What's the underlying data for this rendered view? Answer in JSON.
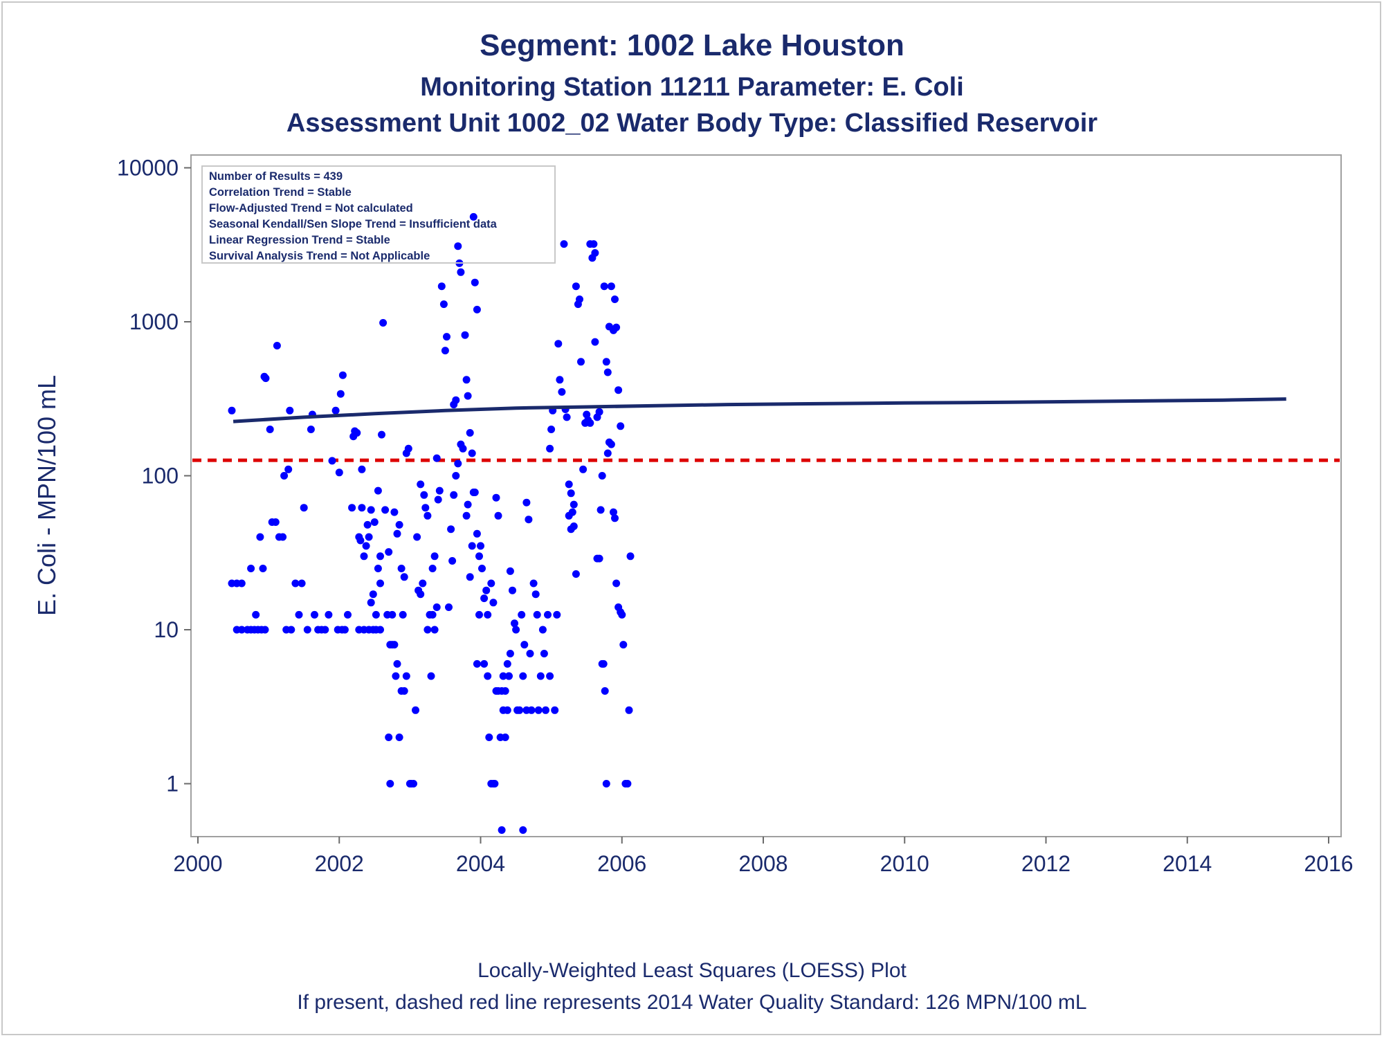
{
  "titles": {
    "line1": "Segment: 1002  Lake Houston",
    "line2": "Monitoring Station 11211 Parameter: E. Coli",
    "line3": "Assessment Unit 1002_02   Water Body Type: Classified Reservoir"
  },
  "stats_box": [
    "Number of Results = 439",
    "Correlation Trend = Stable",
    "Flow-Adjusted Trend = Not calculated",
    "Seasonal Kendall/Sen Slope Trend = Insufficient data",
    "Linear Regression Trend = Stable",
    "Survival Analysis Trend = Not Applicable"
  ],
  "footnotes": {
    "line1": "Locally-Weighted Least Squares (LOESS) Plot",
    "line2": "If present, dashed red line represents 2014 Water Quality Standard: 126 MPN/100 mL"
  },
  "chart_data": {
    "type": "scatter",
    "ylabel": "E. Coli - MPN/100 mL",
    "xlabel": "",
    "y_scale": "log",
    "xlim": [
      2000,
      2016
    ],
    "ylim": [
      0.45,
      13000
    ],
    "x_ticks": [
      2000,
      2002,
      2004,
      2006,
      2008,
      2010,
      2012,
      2014,
      2016
    ],
    "y_ticks": [
      1,
      10,
      100,
      1000,
      10000
    ],
    "colors": {
      "points": "#0000ff",
      "loess": "#1a2a6c",
      "standard": "#dd0000",
      "text": "#1a2a6c"
    },
    "standard_line": {
      "value": 126,
      "style": "dashed"
    },
    "loess": {
      "x": [
        2000.5,
        2001.5,
        2002.5,
        2003.5,
        2004.5,
        2005.5,
        2006.5,
        2007.5,
        2008.5,
        2010,
        2011.5,
        2013,
        2014.5,
        2015.4
      ],
      "y": [
        225,
        240,
        253,
        265,
        275,
        280,
        285,
        290,
        293,
        297,
        300,
        305,
        310,
        315
      ]
    },
    "points": [
      [
        2000.48,
        265
      ],
      [
        2000.48,
        20
      ],
      [
        2000.55,
        20
      ],
      [
        2000.62,
        20
      ],
      [
        2000.55,
        10
      ],
      [
        2000.62,
        10
      ],
      [
        2000.7,
        10
      ],
      [
        2000.75,
        10
      ],
      [
        2000.8,
        10
      ],
      [
        2000.85,
        10
      ],
      [
        2000.9,
        10
      ],
      [
        2000.95,
        10
      ],
      [
        2000.75,
        25
      ],
      [
        2000.82,
        12.5
      ],
      [
        2000.88,
        40
      ],
      [
        2000.92,
        25
      ],
      [
        2000.94,
        440
      ],
      [
        2000.96,
        430
      ],
      [
        2001.02,
        200
      ],
      [
        2001.05,
        50
      ],
      [
        2001.1,
        50
      ],
      [
        2001.12,
        700
      ],
      [
        2001.15,
        40
      ],
      [
        2001.2,
        40
      ],
      [
        2001.22,
        100
      ],
      [
        2001.28,
        110
      ],
      [
        2001.3,
        265
      ],
      [
        2001.25,
        10
      ],
      [
        2001.32,
        10
      ],
      [
        2001.38,
        20
      ],
      [
        2001.43,
        12.5
      ],
      [
        2001.47,
        20
      ],
      [
        2001.5,
        62
      ],
      [
        2001.55,
        10
      ],
      [
        2001.6,
        200
      ],
      [
        2001.62,
        250
      ],
      [
        2001.65,
        12.5
      ],
      [
        2001.7,
        10
      ],
      [
        2001.75,
        10
      ],
      [
        2001.8,
        10
      ],
      [
        2001.85,
        12.5
      ],
      [
        2001.9,
        125
      ],
      [
        2001.95,
        265
      ],
      [
        2002.0,
        105
      ],
      [
        2002.02,
        340
      ],
      [
        2002.05,
        450
      ],
      [
        2001.98,
        10
      ],
      [
        2002.04,
        10
      ],
      [
        2002.08,
        10
      ],
      [
        2002.12,
        12.5
      ],
      [
        2002.18,
        62
      ],
      [
        2002.2,
        180
      ],
      [
        2002.22,
        195
      ],
      [
        2002.25,
        190
      ],
      [
        2002.28,
        40
      ],
      [
        2002.3,
        38
      ],
      [
        2002.32,
        62
      ],
      [
        2002.32,
        110
      ],
      [
        2002.35,
        30
      ],
      [
        2002.38,
        35
      ],
      [
        2002.4,
        48
      ],
      [
        2002.42,
        40
      ],
      [
        2002.28,
        10
      ],
      [
        2002.35,
        10
      ],
      [
        2002.42,
        10
      ],
      [
        2002.48,
        10
      ],
      [
        2002.52,
        10
      ],
      [
        2002.58,
        10
      ],
      [
        2002.45,
        15
      ],
      [
        2002.48,
        17
      ],
      [
        2002.52,
        12.5
      ],
      [
        2002.55,
        25
      ],
      [
        2002.58,
        20
      ],
      [
        2002.45,
        60
      ],
      [
        2002.5,
        50
      ],
      [
        2002.55,
        80
      ],
      [
        2002.58,
        30
      ],
      [
        2002.6,
        185
      ],
      [
        2002.62,
        985
      ],
      [
        2002.65,
        60
      ],
      [
        2002.68,
        12.5
      ],
      [
        2002.7,
        32
      ],
      [
        2002.72,
        8
      ],
      [
        2002.75,
        8
      ],
      [
        2002.7,
        2
      ],
      [
        2002.72,
        1
      ],
      [
        2002.75,
        12.5
      ],
      [
        2002.78,
        8
      ],
      [
        2002.8,
        5
      ],
      [
        2002.82,
        6
      ],
      [
        2002.85,
        2
      ],
      [
        2002.88,
        4
      ],
      [
        2002.9,
        12.5
      ],
      [
        2002.92,
        4
      ],
      [
        2002.95,
        5
      ],
      [
        2002.78,
        58
      ],
      [
        2002.82,
        42
      ],
      [
        2002.85,
        48
      ],
      [
        2002.88,
        25
      ],
      [
        2002.92,
        22
      ],
      [
        2002.95,
        140
      ],
      [
        2002.98,
        150
      ],
      [
        2003.0,
        1
      ],
      [
        2003.02,
        1
      ],
      [
        2003.05,
        1
      ],
      [
        2003.08,
        3
      ],
      [
        2003.1,
        40
      ],
      [
        2003.12,
        18
      ],
      [
        2003.15,
        17
      ],
      [
        2003.18,
        20
      ],
      [
        2003.15,
        88
      ],
      [
        2003.2,
        75
      ],
      [
        2003.22,
        62
      ],
      [
        2003.25,
        55
      ],
      [
        2003.28,
        12.5
      ],
      [
        2003.25,
        10
      ],
      [
        2003.3,
        5
      ],
      [
        2003.32,
        12.5
      ],
      [
        2003.35,
        10
      ],
      [
        2003.38,
        14
      ],
      [
        2003.32,
        25
      ],
      [
        2003.35,
        30
      ],
      [
        2003.38,
        130
      ],
      [
        2003.4,
        70
      ],
      [
        2003.42,
        80
      ],
      [
        2003.45,
        1700
      ],
      [
        2003.48,
        1300
      ],
      [
        2003.5,
        650
      ],
      [
        2003.52,
        800
      ],
      [
        2003.55,
        14
      ],
      [
        2003.58,
        45
      ],
      [
        2003.6,
        28
      ],
      [
        2003.62,
        75
      ],
      [
        2003.65,
        100
      ],
      [
        2003.68,
        120
      ],
      [
        2003.62,
        290
      ],
      [
        2003.65,
        310
      ],
      [
        2003.68,
        3100
      ],
      [
        2003.7,
        2400
      ],
      [
        2003.72,
        2100
      ],
      [
        2003.72,
        160
      ],
      [
        2003.75,
        150
      ],
      [
        2003.78,
        820
      ],
      [
        2003.8,
        420
      ],
      [
        2003.82,
        330
      ],
      [
        2003.8,
        55
      ],
      [
        2003.82,
        65
      ],
      [
        2003.85,
        22
      ],
      [
        2003.88,
        35
      ],
      [
        2003.9,
        4800
      ],
      [
        2003.92,
        1800
      ],
      [
        2003.95,
        1200
      ],
      [
        2003.85,
        190
      ],
      [
        2003.88,
        140
      ],
      [
        2003.9,
        78
      ],
      [
        2003.92,
        78
      ],
      [
        2003.95,
        42
      ],
      [
        2003.98,
        30
      ],
      [
        2004.0,
        35
      ],
      [
        2004.02,
        25
      ],
      [
        2003.98,
        12.5
      ],
      [
        2004.05,
        16
      ],
      [
        2004.08,
        18
      ],
      [
        2004.1,
        12.5
      ],
      [
        2003.95,
        6
      ],
      [
        2004.05,
        6
      ],
      [
        2004.1,
        5
      ],
      [
        2004.12,
        2
      ],
      [
        2004.15,
        1
      ],
      [
        2004.18,
        1
      ],
      [
        2004.2,
        1
      ],
      [
        2004.22,
        4
      ],
      [
        2004.25,
        4
      ],
      [
        2004.28,
        2
      ],
      [
        2004.3,
        4
      ],
      [
        2004.32,
        3
      ],
      [
        2004.35,
        2
      ],
      [
        2004.38,
        3
      ],
      [
        2004.4,
        5
      ],
      [
        2004.15,
        20
      ],
      [
        2004.18,
        15
      ],
      [
        2004.22,
        72
      ],
      [
        2004.25,
        55
      ],
      [
        2004.3,
        0.5
      ],
      [
        2004.32,
        5
      ],
      [
        2004.35,
        4
      ],
      [
        2004.38,
        6
      ],
      [
        2004.4,
        5
      ],
      [
        2004.42,
        7
      ],
      [
        2004.42,
        24
      ],
      [
        2004.45,
        18
      ],
      [
        2004.48,
        11
      ],
      [
        2004.5,
        10
      ],
      [
        2004.52,
        3
      ],
      [
        2004.55,
        3
      ],
      [
        2004.58,
        12.5
      ],
      [
        2004.6,
        5
      ],
      [
        2004.62,
        8
      ],
      [
        2004.65,
        3
      ],
      [
        2004.6,
        0.5
      ],
      [
        2004.65,
        67
      ],
      [
        2004.68,
        52
      ],
      [
        2004.7,
        7
      ],
      [
        2004.72,
        3
      ],
      [
        2004.75,
        20
      ],
      [
        2004.78,
        17
      ],
      [
        2004.8,
        12.5
      ],
      [
        2004.82,
        3
      ],
      [
        2004.85,
        5
      ],
      [
        2004.88,
        10
      ],
      [
        2004.9,
        7
      ],
      [
        2004.92,
        3
      ],
      [
        2004.95,
        12.5
      ],
      [
        2004.98,
        5
      ],
      [
        2004.98,
        150
      ],
      [
        2005.0,
        200
      ],
      [
        2005.02,
        265
      ],
      [
        2005.05,
        3
      ],
      [
        2005.08,
        12.5
      ],
      [
        2005.1,
        720
      ],
      [
        2005.12,
        420
      ],
      [
        2005.15,
        350
      ],
      [
        2005.18,
        3200
      ],
      [
        2005.2,
        270
      ],
      [
        2005.22,
        240
      ],
      [
        2005.25,
        88
      ],
      [
        2005.28,
        77
      ],
      [
        2005.3,
        58
      ],
      [
        2005.32,
        47
      ],
      [
        2005.25,
        55
      ],
      [
        2005.28,
        45
      ],
      [
        2005.32,
        65
      ],
      [
        2005.35,
        23
      ],
      [
        2005.35,
        1700
      ],
      [
        2005.38,
        1300
      ],
      [
        2005.4,
        1400
      ],
      [
        2005.42,
        550
      ],
      [
        2005.45,
        110
      ],
      [
        2005.48,
        220
      ],
      [
        2005.5,
        250
      ],
      [
        2005.52,
        230
      ],
      [
        2005.55,
        220
      ],
      [
        2005.58,
        2600
      ],
      [
        2005.6,
        3200
      ],
      [
        2005.62,
        2800
      ],
      [
        2005.55,
        3200
      ],
      [
        2005.65,
        240
      ],
      [
        2005.68,
        260
      ],
      [
        2005.62,
        740
      ],
      [
        2005.65,
        29
      ],
      [
        2005.68,
        29
      ],
      [
        2005.7,
        60
      ],
      [
        2005.72,
        100
      ],
      [
        2005.75,
        1700
      ],
      [
        2005.78,
        550
      ],
      [
        2005.8,
        470
      ],
      [
        2005.82,
        930
      ],
      [
        2005.85,
        1700
      ],
      [
        2005.88,
        880
      ],
      [
        2005.9,
        1400
      ],
      [
        2005.92,
        920
      ],
      [
        2005.95,
        360
      ],
      [
        2005.98,
        210
      ],
      [
        2005.72,
        6
      ],
      [
        2005.74,
        6
      ],
      [
        2005.76,
        4
      ],
      [
        2005.78,
        1
      ],
      [
        2005.8,
        140
      ],
      [
        2005.82,
        165
      ],
      [
        2005.85,
        160
      ],
      [
        2005.88,
        58
      ],
      [
        2005.9,
        53
      ],
      [
        2005.92,
        20
      ],
      [
        2005.95,
        14
      ],
      [
        2005.98,
        13
      ],
      [
        2006.0,
        12.5
      ],
      [
        2006.02,
        8
      ],
      [
        2006.05,
        1
      ],
      [
        2006.08,
        1
      ],
      [
        2006.1,
        3
      ],
      [
        2006.12,
        30
      ]
    ]
  }
}
